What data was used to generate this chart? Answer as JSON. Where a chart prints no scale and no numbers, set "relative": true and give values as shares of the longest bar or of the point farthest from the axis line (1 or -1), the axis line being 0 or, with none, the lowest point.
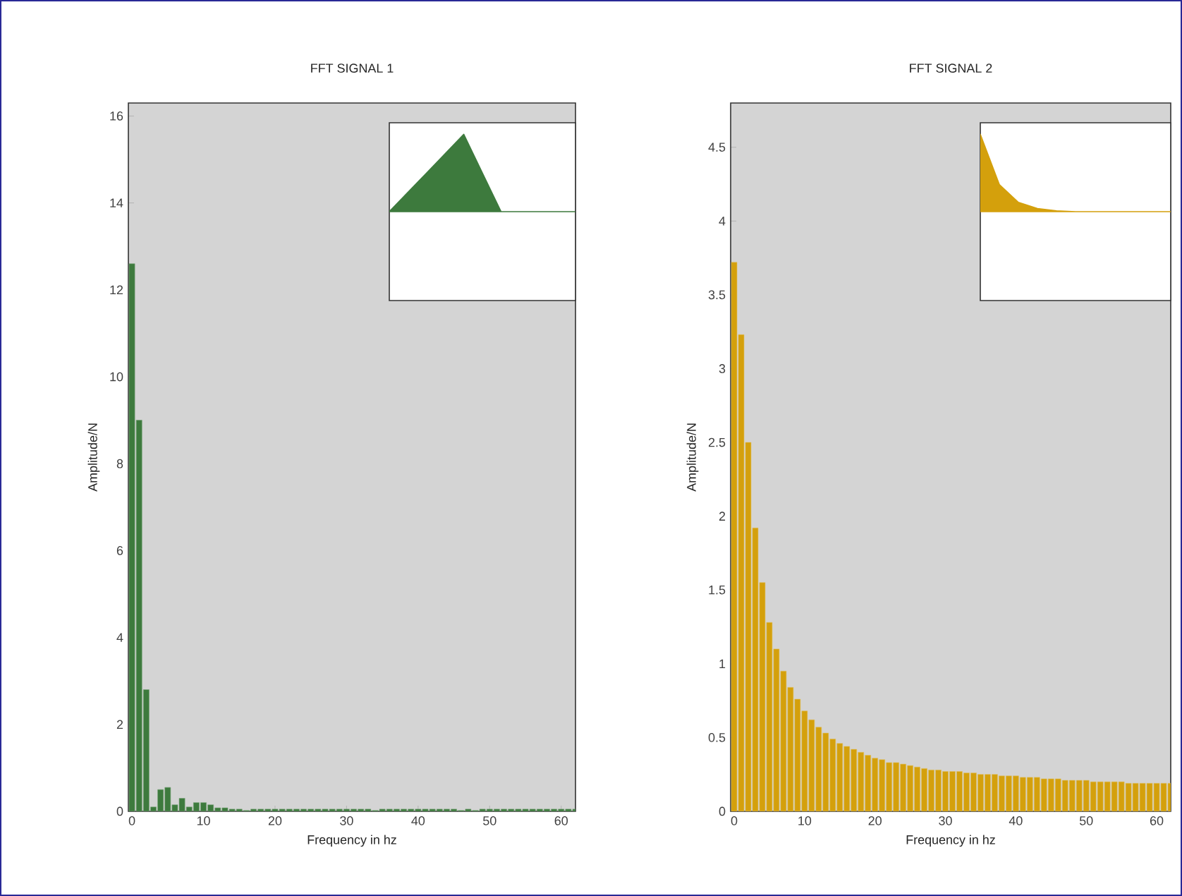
{
  "chart_data": [
    {
      "type": "bar",
      "title": "FFT SIGNAL 1",
      "xlabel": "Frequency in hz",
      "ylabel": "Amplitude/N",
      "color": "#3d7a3d",
      "x": [
        0,
        1,
        2,
        3,
        4,
        5,
        6,
        7,
        8,
        9,
        10,
        11,
        12,
        13,
        14,
        15,
        16,
        17,
        18,
        19,
        20,
        21,
        22,
        23,
        24,
        25,
        26,
        27,
        28,
        29,
        30,
        31,
        32,
        33,
        34,
        35,
        36,
        37,
        38,
        39,
        40,
        41,
        42,
        43,
        44,
        45,
        46,
        47,
        48,
        49,
        50,
        51,
        52,
        53,
        54,
        55,
        56,
        57,
        58,
        59,
        60,
        61,
        62
      ],
      "values": [
        12.6,
        9.0,
        2.8,
        0.1,
        0.5,
        0.55,
        0.15,
        0.3,
        0.1,
        0.2,
        0.2,
        0.15,
        0.08,
        0.08,
        0.05,
        0.05,
        0.02,
        0.05,
        0.05,
        0.05,
        0.05,
        0.05,
        0.05,
        0.05,
        0.05,
        0.05,
        0.05,
        0.05,
        0.05,
        0.05,
        0.05,
        0.05,
        0.05,
        0.05,
        0.02,
        0.05,
        0.05,
        0.05,
        0.05,
        0.05,
        0.05,
        0.05,
        0.05,
        0.05,
        0.05,
        0.05,
        0.02,
        0.05,
        0.02,
        0.05,
        0.05,
        0.05,
        0.05,
        0.05,
        0.05,
        0.05,
        0.05,
        0.05,
        0.05,
        0.05,
        0.05,
        0.05,
        0.05
      ],
      "xlim": [
        -0.5,
        62
      ],
      "xticks": [
        0,
        10,
        20,
        30,
        40,
        50,
        60
      ],
      "ylim": [
        0,
        16.3
      ],
      "yticks": [
        0,
        2,
        4,
        6,
        8,
        10,
        12,
        14,
        16
      ]
    },
    {
      "type": "area",
      "relative": true,
      "color": "#3d7a3d",
      "categories": [
        null,
        null,
        null,
        null,
        null,
        null,
        null,
        null,
        null,
        null,
        null
      ],
      "values": [
        0,
        0.25,
        0.5,
        0.75,
        1,
        0.5,
        0,
        0,
        0,
        0,
        0
      ]
    },
    {
      "type": "bar",
      "title": "FFT SIGNAL 2",
      "xlabel": "Frequency in hz",
      "ylabel": "Amplitude/N",
      "color": "#d4a00c",
      "x": [
        0,
        1,
        2,
        3,
        4,
        5,
        6,
        7,
        8,
        9,
        10,
        11,
        12,
        13,
        14,
        15,
        16,
        17,
        18,
        19,
        20,
        21,
        22,
        23,
        24,
        25,
        26,
        27,
        28,
        29,
        30,
        31,
        32,
        33,
        34,
        35,
        36,
        37,
        38,
        39,
        40,
        41,
        42,
        43,
        44,
        45,
        46,
        47,
        48,
        49,
        50,
        51,
        52,
        53,
        54,
        55,
        56,
        57,
        58,
        59,
        60,
        61,
        62
      ],
      "values": [
        3.72,
        3.23,
        2.5,
        1.92,
        1.55,
        1.28,
        1.1,
        0.95,
        0.84,
        0.76,
        0.68,
        0.62,
        0.57,
        0.53,
        0.49,
        0.46,
        0.44,
        0.42,
        0.4,
        0.38,
        0.36,
        0.35,
        0.33,
        0.33,
        0.32,
        0.31,
        0.3,
        0.29,
        0.28,
        0.28,
        0.27,
        0.27,
        0.27,
        0.26,
        0.26,
        0.25,
        0.25,
        0.25,
        0.24,
        0.24,
        0.24,
        0.23,
        0.23,
        0.23,
        0.22,
        0.22,
        0.22,
        0.21,
        0.21,
        0.21,
        0.21,
        0.2,
        0.2,
        0.2,
        0.2,
        0.2,
        0.19,
        0.19,
        0.19,
        0.19,
        0.19,
        0.19,
        0.19
      ],
      "xlim": [
        -0.5,
        62
      ],
      "xticks": [
        0,
        10,
        20,
        30,
        40,
        50,
        60
      ],
      "ylim": [
        0,
        4.8
      ],
      "yticks": [
        0,
        0.5,
        1,
        1.5,
        2,
        2.5,
        3,
        3.5,
        4,
        4.5
      ]
    },
    {
      "type": "area",
      "relative": true,
      "color": "#d4a00c",
      "categories": [
        null,
        null,
        null,
        null,
        null,
        null,
        null,
        null,
        null,
        null,
        null
      ],
      "values": [
        1,
        0.35,
        0.12,
        0.04,
        0.01,
        0,
        0,
        0,
        0,
        0,
        0
      ]
    }
  ]
}
